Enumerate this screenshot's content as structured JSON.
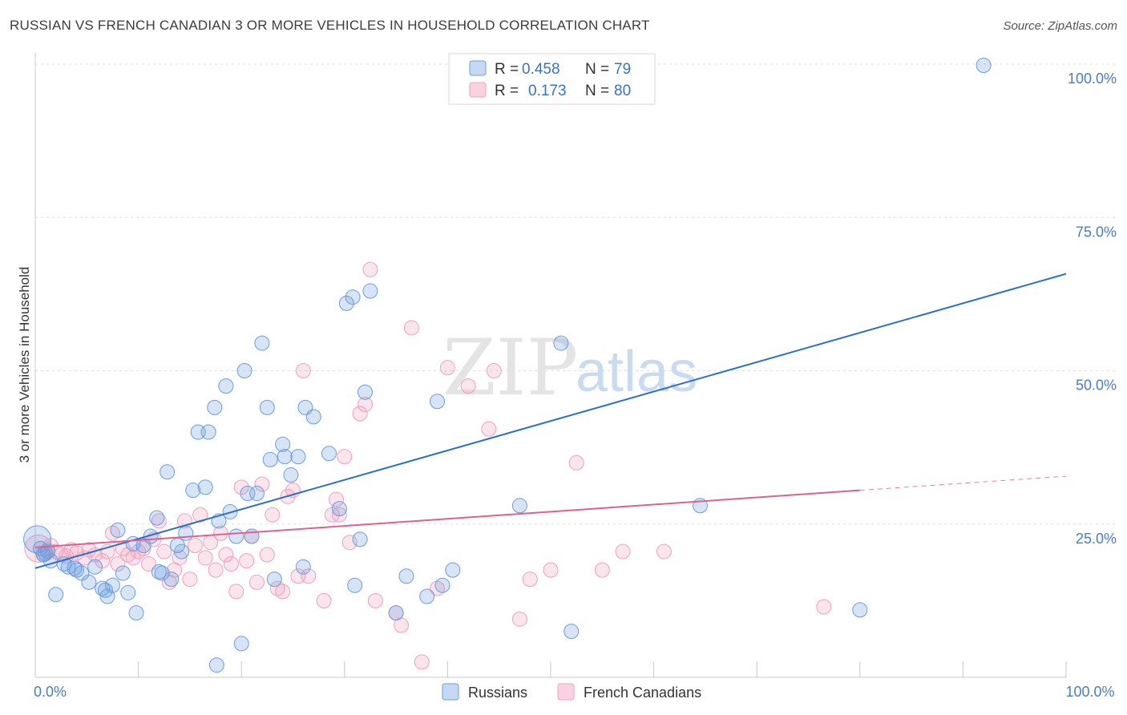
{
  "title": "RUSSIAN VS FRENCH CANADIAN 3 OR MORE VEHICLES IN HOUSEHOLD CORRELATION CHART",
  "source": "Source: ZipAtlas.com",
  "watermark": {
    "zip": "ZIP",
    "atlas": "atlas"
  },
  "chart_data": {
    "type": "scatter",
    "title": "RUSSIAN VS FRENCH CANADIAN 3 OR MORE VEHICLES IN HOUSEHOLD CORRELATION CHART",
    "xlabel": "",
    "ylabel": "3 or more Vehicles in Household",
    "xlim": [
      0,
      100
    ],
    "ylim": [
      0,
      100
    ],
    "x_tick_labels": [
      {
        "value": 0,
        "label": "0.0%"
      },
      {
        "value": 100,
        "label": "100.0%"
      }
    ],
    "y_tick_labels": [
      {
        "value": 25,
        "label": "25.0%"
      },
      {
        "value": 50,
        "label": "50.0%"
      },
      {
        "value": 75,
        "label": "75.0%"
      },
      {
        "value": 100,
        "label": "100.0%"
      }
    ],
    "legend": {
      "placement": "top-center",
      "entries": [
        {
          "series": "Russians",
          "r_label": "R =",
          "r_value": "0.458",
          "n_label": "N =",
          "n_value": "79"
        },
        {
          "series": "French Canadians",
          "r_label": "R =",
          "r_value": "0.173",
          "n_label": "N =",
          "n_value": "80"
        }
      ]
    },
    "series": [
      {
        "name": "Russians",
        "color": "#6b9ee0",
        "line_color": "#2b6fcc",
        "trend": {
          "x0": 0,
          "y0": 17.8,
          "x1": 100,
          "y1": 65.8
        },
        "points": [
          [
            0.2,
            22.5
          ],
          [
            0.5,
            21.0
          ],
          [
            0.8,
            20.0
          ],
          [
            1.2,
            20.5
          ],
          [
            1.5,
            19.0
          ],
          [
            2.0,
            13.5
          ],
          [
            2.8,
            18.5
          ],
          [
            3.2,
            18.0
          ],
          [
            4.0,
            17.5
          ],
          [
            4.5,
            17.0
          ],
          [
            5.2,
            15.5
          ],
          [
            5.8,
            18.0
          ],
          [
            6.5,
            14.5
          ],
          [
            7.0,
            13.2
          ],
          [
            7.5,
            15.0
          ],
          [
            8.0,
            24.0
          ],
          [
            8.5,
            17.0
          ],
          [
            9.0,
            13.8
          ],
          [
            9.8,
            10.5
          ],
          [
            10.5,
            21.5
          ],
          [
            11.2,
            23.0
          ],
          [
            11.8,
            26.0
          ],
          [
            12.3,
            17.0
          ],
          [
            12.8,
            33.5
          ],
          [
            13.2,
            16.0
          ],
          [
            13.8,
            21.5
          ],
          [
            14.2,
            20.5
          ],
          [
            14.6,
            23.5
          ],
          [
            15.3,
            30.5
          ],
          [
            15.8,
            40.0
          ],
          [
            16.5,
            31.0
          ],
          [
            16.8,
            40.0
          ],
          [
            17.4,
            44.0
          ],
          [
            17.8,
            25.5
          ],
          [
            17.6,
            2.0
          ],
          [
            18.5,
            47.5
          ],
          [
            18.9,
            27.0
          ],
          [
            19.5,
            23.0
          ],
          [
            20.0,
            5.5
          ],
          [
            20.3,
            50.0
          ],
          [
            20.6,
            30.0
          ],
          [
            21.0,
            23.0
          ],
          [
            21.5,
            30.0
          ],
          [
            22.0,
            54.5
          ],
          [
            22.5,
            44.0
          ],
          [
            22.8,
            35.5
          ],
          [
            23.2,
            16.0
          ],
          [
            24.0,
            38.0
          ],
          [
            24.2,
            36.0
          ],
          [
            24.8,
            33.0
          ],
          [
            25.5,
            36.0
          ],
          [
            26.2,
            44.0
          ],
          [
            26.0,
            18.0
          ],
          [
            27.0,
            42.5
          ],
          [
            28.5,
            36.5
          ],
          [
            29.5,
            27.5
          ],
          [
            30.2,
            61.0
          ],
          [
            30.8,
            62.0
          ],
          [
            31.0,
            15.0
          ],
          [
            31.5,
            22.5
          ],
          [
            32.0,
            46.5
          ],
          [
            32.5,
            63.0
          ],
          [
            35.0,
            10.5
          ],
          [
            36.0,
            16.5
          ],
          [
            38.0,
            13.2
          ],
          [
            39.0,
            45.0
          ],
          [
            39.5,
            15.0
          ],
          [
            40.5,
            17.5
          ],
          [
            47.0,
            28.0
          ],
          [
            51.0,
            54.5
          ],
          [
            52.0,
            7.5
          ],
          [
            64.5,
            28.0
          ],
          [
            80.0,
            11.0
          ],
          [
            92.0,
            99.8
          ],
          [
            1.0,
            20.2
          ],
          [
            3.8,
            17.8
          ],
          [
            6.8,
            14.2
          ],
          [
            9.5,
            21.8
          ],
          [
            12.0,
            17.2
          ]
        ]
      },
      {
        "name": "French Canadians",
        "color": "#f0a0bd",
        "line_color": "#e0608e",
        "trend": {
          "x0": 0,
          "y0": 21.2,
          "x1": 80,
          "y1": 30.5
        },
        "trend_dash": {
          "x0": 80,
          "y0": 30.5,
          "x1": 100,
          "y1": 32.8
        },
        "points": [
          [
            0.3,
            21.0
          ],
          [
            0.8,
            20.2
          ],
          [
            1.5,
            21.5
          ],
          [
            2.0,
            20.5
          ],
          [
            2.5,
            20.0
          ],
          [
            3.0,
            19.8
          ],
          [
            3.5,
            20.8
          ],
          [
            4.0,
            20.3
          ],
          [
            4.8,
            19.5
          ],
          [
            5.2,
            20.8
          ],
          [
            5.8,
            20.0
          ],
          [
            6.5,
            19.0
          ],
          [
            7.0,
            20.5
          ],
          [
            7.5,
            23.5
          ],
          [
            8.0,
            18.5
          ],
          [
            8.5,
            21.0
          ],
          [
            9.0,
            20.0
          ],
          [
            9.5,
            19.5
          ],
          [
            10.0,
            20.5
          ],
          [
            10.5,
            21.0
          ],
          [
            11.0,
            18.5
          ],
          [
            11.5,
            22.5
          ],
          [
            12.0,
            25.5
          ],
          [
            12.5,
            20.5
          ],
          [
            13.0,
            15.5
          ],
          [
            13.5,
            17.5
          ],
          [
            14.0,
            19.5
          ],
          [
            14.5,
            25.5
          ],
          [
            15.0,
            16.0
          ],
          [
            15.5,
            21.5
          ],
          [
            16.0,
            26.5
          ],
          [
            16.5,
            19.5
          ],
          [
            17.0,
            22.0
          ],
          [
            17.5,
            17.5
          ],
          [
            18.0,
            23.5
          ],
          [
            18.5,
            20.0
          ],
          [
            19.0,
            18.5
          ],
          [
            19.5,
            14.0
          ],
          [
            20.0,
            31.0
          ],
          [
            20.5,
            19.0
          ],
          [
            21.0,
            23.0
          ],
          [
            21.5,
            15.5
          ],
          [
            22.0,
            31.5
          ],
          [
            22.5,
            20.0
          ],
          [
            23.0,
            26.5
          ],
          [
            23.5,
            14.5
          ],
          [
            24.0,
            14.0
          ],
          [
            24.5,
            29.5
          ],
          [
            25.0,
            30.5
          ],
          [
            25.5,
            16.5
          ],
          [
            26.0,
            50.0
          ],
          [
            26.5,
            16.5
          ],
          [
            28.0,
            12.5
          ],
          [
            28.8,
            26.5
          ],
          [
            29.2,
            29.0
          ],
          [
            29.5,
            26.5
          ],
          [
            30.0,
            36.0
          ],
          [
            30.5,
            22.0
          ],
          [
            31.5,
            43.0
          ],
          [
            32.0,
            44.5
          ],
          [
            32.5,
            66.5
          ],
          [
            33.0,
            12.5
          ],
          [
            35.0,
            10.5
          ],
          [
            35.5,
            8.5
          ],
          [
            36.5,
            57.0
          ],
          [
            37.5,
            2.5
          ],
          [
            39.0,
            14.5
          ],
          [
            40.0,
            50.5
          ],
          [
            42.0,
            47.5
          ],
          [
            44.0,
            40.5
          ],
          [
            44.5,
            50.0
          ],
          [
            47.0,
            9.5
          ],
          [
            48.0,
            16.0
          ],
          [
            50.0,
            17.5
          ],
          [
            52.5,
            35.0
          ],
          [
            55.0,
            17.5
          ],
          [
            57.0,
            20.5
          ],
          [
            61.0,
            20.5
          ],
          [
            76.5,
            11.5
          ],
          [
            1.2,
            20.8
          ]
        ]
      }
    ]
  }
}
